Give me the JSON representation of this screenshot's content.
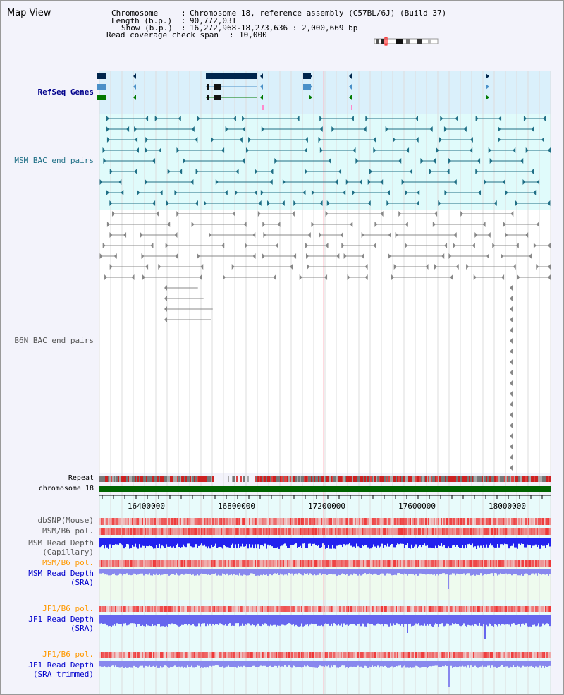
{
  "view_title": "Map View",
  "info": {
    "chromosome_key": "Chromosome",
    "chromosome_val": "Chromosome 18, reference assembly (C57BL/6J) (Build 37)",
    "length_key": "Length (b.p.)",
    "length_val": "90,772,031",
    "show_key": "Show (b.p.)",
    "show_val": "16,272,968-18,273,636 : 2,000,669 bp",
    "read_key": "Read coverage check span",
    "read_val": "10,000"
  },
  "track_labels": {
    "refseq": "RefSeq Genes",
    "msm_bac": "MSM BAC end pairs",
    "b6n_bac": "B6N BAC end pairs",
    "repeat": "Repeat",
    "chromosome": "chromosome 18",
    "dbsnp": "dbSNP(Mouse)",
    "msm_b6_pol_1": "MSM/B6 pol.",
    "msm_depth_cap_1": "MSM Read Depth",
    "msm_depth_cap_2": "(Capillary)",
    "msm_b6_pol_2": "MSM/B6 pol.",
    "msm_depth_sra_1": "MSM Read Depth",
    "msm_depth_sra_2": "(SRA)",
    "jf1_pol_1": "JF1/B6 pol.",
    "jf1_depth_sra_1": "JF1 Read Depth",
    "jf1_depth_sra_2": "(SRA)",
    "jf1_pol_2": "JF1/B6 pol.",
    "jf1_depth_trim_1": "JF1 Read Depth",
    "jf1_depth_trim_2": "(SRA trimmed)"
  },
  "axis_ticks": [
    "16400000",
    "16800000",
    "17200000",
    "17600000",
    "18000000"
  ],
  "colors": {
    "refseq_bg": "#daf0fb",
    "msm_bac_bg": "#e0fbfb",
    "track_bg": "#e8fbfb",
    "chromosome_bar": "#006400",
    "depth_blue": "#2222ee",
    "pol_red": "#ee3333"
  }
}
